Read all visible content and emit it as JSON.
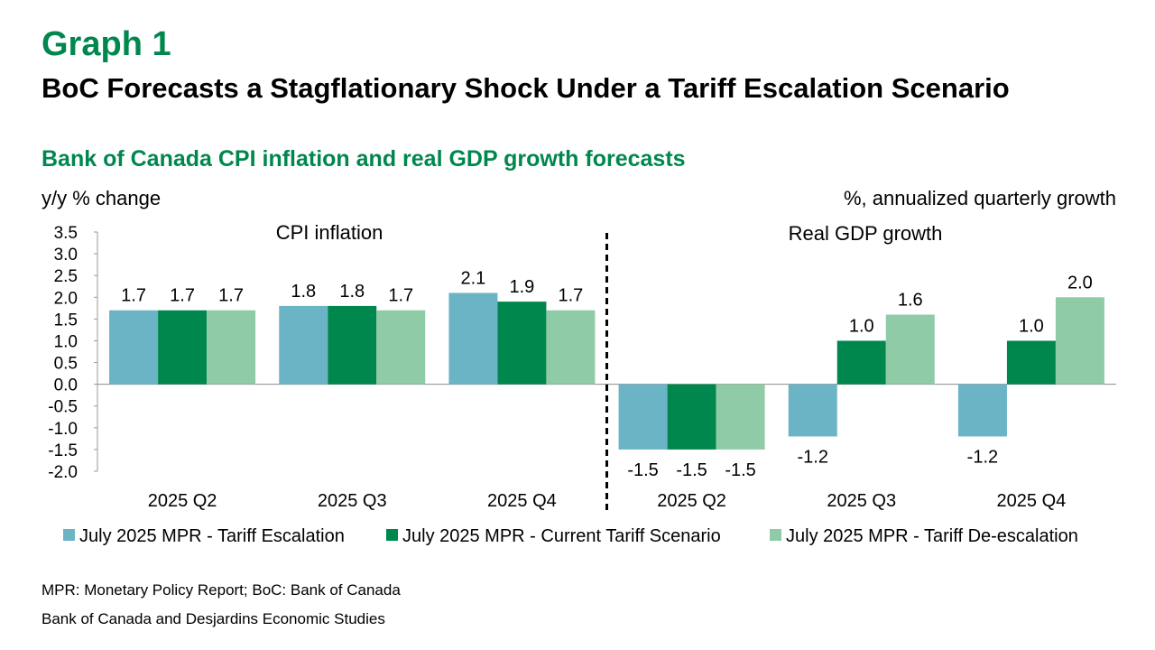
{
  "header": {
    "graph_label": "Graph 1",
    "title": "BoC Forecasts a Stagflationary Shock Under a Tariff Escalation Scenario",
    "subtitle": "Bank of Canada CPI inflation and real GDP growth forecasts"
  },
  "footer": {
    "note": "MPR: Monetary Policy Report; BoC: Bank of Canada",
    "source": "Bank of Canada and Desjardins Economic Studies"
  },
  "chart_data": {
    "type": "bar",
    "ylabel_left": "y/y % change",
    "ylabel_right": "%, annualized quarterly growth",
    "ylim": [
      -2.0,
      3.5
    ],
    "yticks": [
      "3.5",
      "3.0",
      "2.5",
      "2.0",
      "1.5",
      "1.0",
      "0.5",
      "0.0",
      "-0.5",
      "-1.0",
      "-1.5",
      "-2.0"
    ],
    "grid": false,
    "legend_position": "bottom",
    "panels": [
      {
        "label": "CPI inflation"
      },
      {
        "label": "Real GDP growth"
      }
    ],
    "categories": [
      "2025 Q2",
      "2025 Q3",
      "2025 Q4",
      "2025 Q2",
      "2025 Q3",
      "2025 Q4"
    ],
    "series": [
      {
        "name": "July 2025 MPR - Tariff Escalation",
        "color": "#6ab4c6",
        "values": [
          1.7,
          1.8,
          2.1,
          -1.5,
          -1.2,
          -1.2
        ],
        "labels": [
          "1.7",
          "1.8",
          "2.1",
          "-1.5",
          "-1.2",
          "-1.2"
        ]
      },
      {
        "name": "July 2025 MPR - Current Tariff Scenario",
        "color": "#00874e",
        "values": [
          1.7,
          1.8,
          1.9,
          -1.5,
          1.0,
          1.0
        ],
        "labels": [
          "1.7",
          "1.8",
          "1.9",
          "-1.5",
          "1.0",
          "1.0"
        ]
      },
      {
        "name": "July 2025 MPR - Tariff De-escalation",
        "color": "#8fcba6",
        "values": [
          1.7,
          1.7,
          1.7,
          -1.5,
          1.6,
          2.0
        ],
        "labels": [
          "1.7",
          "1.7",
          "1.7",
          "-1.5",
          "1.6",
          "2.0"
        ]
      }
    ]
  }
}
